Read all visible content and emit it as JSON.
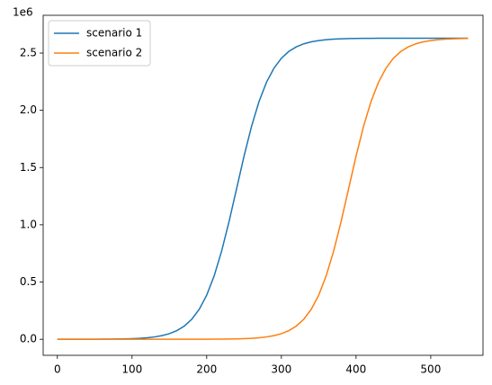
{
  "chart_data": {
    "type": "line",
    "y_offset_label": "1e6",
    "x": [
      0,
      10,
      20,
      30,
      40,
      50,
      60,
      70,
      80,
      90,
      100,
      110,
      120,
      130,
      140,
      150,
      160,
      170,
      180,
      190,
      200,
      210,
      220,
      230,
      240,
      250,
      260,
      270,
      280,
      290,
      300,
      310,
      320,
      330,
      340,
      350,
      360,
      370,
      380,
      390,
      400,
      410,
      420,
      430,
      440,
      450,
      460,
      470,
      480,
      490,
      500,
      510,
      520,
      530,
      540,
      550
    ],
    "series": [
      {
        "name": "scenario 1",
        "color": "#1f77b4",
        "values": [
          68,
          106,
          164,
          255,
          396,
          615,
          955,
          1483,
          2302,
          3573,
          5544,
          8597,
          13323,
          20627,
          31897,
          49196,
          75621,
          115554,
          175200,
          262344,
          386083,
          554501,
          771080,
          1030200,
          1315000,
          1599757,
          1859350,
          2075600,
          2244000,
          2367660,
          2454830,
          2514440,
          2554390,
          2580810,
          2598090,
          2609360,
          2616680,
          2621400,
          2624460,
          2626430,
          2627700,
          2628510,
          2629040,
          2629380,
          2629600,
          2629740,
          2629830,
          2629890,
          2629930,
          2629950,
          2629970,
          2629980,
          2629990,
          2629990,
          2630000,
          2630000
        ]
      },
      {
        "name": "scenario 2",
        "color": "#ff7f0e",
        "values": [
          0,
          0,
          0,
          0,
          1,
          1,
          1,
          2,
          3,
          5,
          8,
          12,
          18,
          28,
          44,
          68,
          106,
          164,
          255,
          396,
          615,
          955,
          1483,
          2302,
          3573,
          5544,
          8597,
          13323,
          20627,
          31897,
          49196,
          75621,
          115554,
          175200,
          262344,
          386083,
          554501,
          771080,
          1030200,
          1315000,
          1599757,
          1859350,
          2075600,
          2244000,
          2367660,
          2454830,
          2514440,
          2554390,
          2580810,
          2598090,
          2609360,
          2616680,
          2621400,
          2624460,
          2626430,
          2627700
        ]
      }
    ],
    "xlim": [
      -19,
      570
    ],
    "xticks": [
      0,
      100,
      200,
      300,
      400,
      500
    ],
    "ylim": [
      -140000,
      2830000
    ],
    "yticks": [
      {
        "value": 0,
        "label": "0.0"
      },
      {
        "value": 500000,
        "label": "0.5"
      },
      {
        "value": 1000000,
        "label": "1.0"
      },
      {
        "value": 1500000,
        "label": "1.5"
      },
      {
        "value": 2000000,
        "label": "2.0"
      },
      {
        "value": 2500000,
        "label": "2.5"
      }
    ],
    "legend": "upper left",
    "grid": false
  }
}
